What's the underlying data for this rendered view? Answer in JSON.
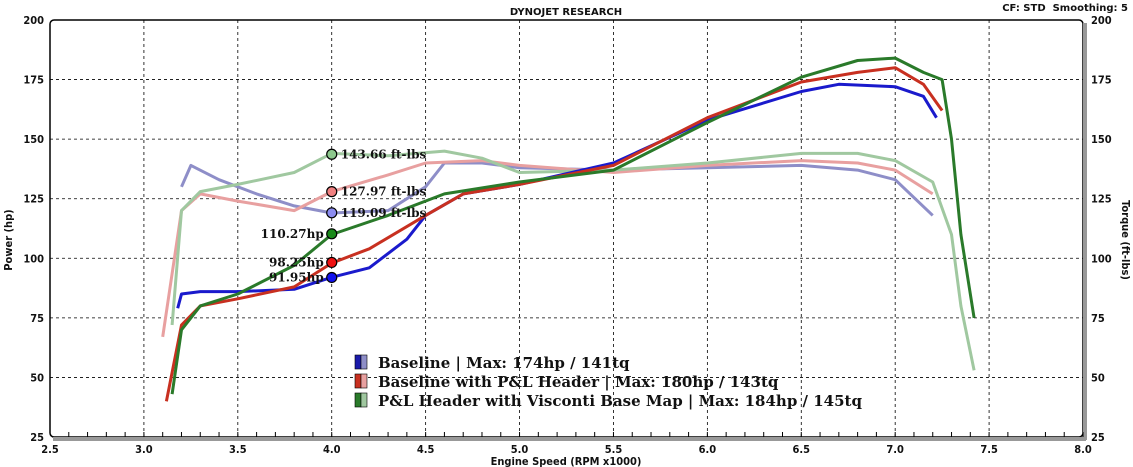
{
  "chart_data": {
    "type": "line",
    "title": "DYNOJET RESEARCH",
    "subtitle": "CF: STD  Smoothing: 5",
    "xlabel": "Engine Speed (RPM x1000)",
    "ylabel": "Power (hp)",
    "y2label": "Torque (ft-lbs)",
    "xlim": [
      2.5,
      8.0
    ],
    "ylim": [
      25,
      200
    ],
    "xticks": [
      "2.5",
      "3.0",
      "3.5",
      "4.0",
      "4.5",
      "5.0",
      "5.5",
      "6.0",
      "6.5",
      "7.0",
      "7.5",
      "8.0"
    ],
    "yticks": [
      "25",
      "50",
      "75",
      "100",
      "125",
      "150",
      "175",
      "200"
    ],
    "grid": true,
    "legend_position": "bottom-center",
    "legend": [
      {
        "label": "Baseline | Max: 174hp / 141tq",
        "color": "#1a1aaa",
        "light": "#8e8ec8"
      },
      {
        "label": "Baseline with P&L Header | Max: 180hp / 143tq",
        "color": "#c83020",
        "light": "#e8a0a0"
      },
      {
        "label": "P&L Header with Visconti Base Map | Max: 184hp / 145tq",
        "color": "#2a7a2a",
        "light": "#a0c8a0"
      }
    ],
    "series": [
      {
        "color": "#1a1acc",
        "x": [
          3.18,
          3.2,
          3.3,
          3.5,
          3.8,
          4.0,
          4.2,
          4.4,
          4.5,
          4.7,
          5.0,
          5.5,
          6.0,
          6.5,
          6.7,
          7.0,
          7.15,
          7.22
        ],
        "y": [
          79,
          85,
          86,
          86,
          87,
          92,
          96,
          108,
          118,
          127,
          131,
          140,
          158,
          170,
          173,
          172,
          168,
          159
        ]
      },
      {
        "color": "#c83020",
        "x": [
          3.12,
          3.2,
          3.3,
          3.5,
          3.8,
          4.0,
          4.2,
          4.5,
          4.7,
          5.0,
          5.5,
          6.0,
          6.5,
          6.8,
          7.0,
          7.15,
          7.25
        ],
        "y": [
          40,
          72,
          80,
          83,
          88,
          98,
          104,
          118,
          127,
          131,
          139,
          159,
          174,
          178,
          180,
          173,
          162
        ]
      },
      {
        "color": "#2a7a2a",
        "x": [
          3.15,
          3.2,
          3.3,
          3.5,
          3.8,
          4.0,
          4.3,
          4.6,
          5.0,
          5.5,
          6.0,
          6.5,
          6.8,
          7.0,
          7.15,
          7.25,
          7.3,
          7.35,
          7.42
        ],
        "y": [
          43,
          70,
          80,
          85,
          97,
          110,
          118,
          127,
          132,
          137,
          157,
          176,
          183,
          184,
          178,
          175,
          150,
          110,
          75
        ]
      },
      {
        "color": "#8e8ec8",
        "x": [
          3.2,
          3.25,
          3.4,
          3.6,
          3.8,
          4.0,
          4.3,
          4.5,
          4.6,
          4.8,
          5.0,
          5.5,
          6.0,
          6.5,
          6.8,
          7.0,
          7.2
        ],
        "y": [
          130,
          139,
          133,
          127,
          122,
          119,
          120,
          130,
          140,
          140,
          138,
          137,
          138,
          139,
          137,
          133,
          118
        ]
      },
      {
        "color": "#e8a0a0",
        "x": [
          3.1,
          3.2,
          3.3,
          3.5,
          3.8,
          4.0,
          4.3,
          4.5,
          4.8,
          5.0,
          5.5,
          6.0,
          6.5,
          6.8,
          7.0,
          7.2
        ],
        "y": [
          67,
          120,
          127,
          124,
          120,
          128,
          135,
          140,
          141,
          139,
          136,
          139,
          141,
          140,
          137,
          127
        ]
      },
      {
        "color": "#a0c8a0",
        "x": [
          3.15,
          3.2,
          3.3,
          3.5,
          3.8,
          4.0,
          4.3,
          4.6,
          4.8,
          5.0,
          5.5,
          6.0,
          6.5,
          6.8,
          7.0,
          7.2,
          7.3,
          7.35,
          7.42
        ],
        "y": [
          72,
          120,
          128,
          131,
          136,
          144,
          143,
          145,
          142,
          136,
          137,
          140,
          144,
          144,
          141,
          132,
          110,
          80,
          53
        ]
      }
    ],
    "annotations": [
      {
        "x": 4.0,
        "y": 143.66,
        "label": "143.66 ft-lbs",
        "color": "#8cc88c",
        "side": "right"
      },
      {
        "x": 4.0,
        "y": 127.97,
        "label": "127.97 ft-lbs",
        "color": "#f08080",
        "side": "right"
      },
      {
        "x": 4.0,
        "y": 119.09,
        "label": "119.09 ft-lbs",
        "color": "#8c8cf0",
        "side": "right"
      },
      {
        "x": 4.0,
        "y": 110.27,
        "label": "110.27hp",
        "color": "#1a8a1a",
        "side": "left"
      },
      {
        "x": 4.0,
        "y": 98.25,
        "label": "98.25hp",
        "color": "#ee1111",
        "side": "left"
      },
      {
        "x": 4.0,
        "y": 91.95,
        "label": "91.95hp",
        "color": "#1111ee",
        "side": "left"
      }
    ]
  }
}
